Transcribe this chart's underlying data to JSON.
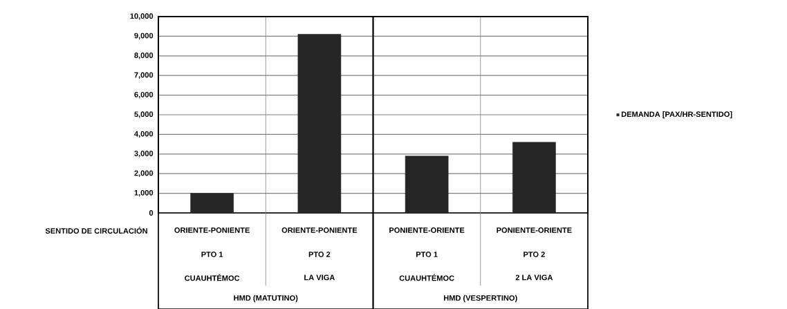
{
  "chart_data": {
    "type": "bar",
    "xlabel": "SENTIDO DE CIRCULACIÓN",
    "categories": [
      "ORIENTE-PONIENTE",
      "ORIENTE-PONIENTE",
      "PONIENTE-ORIENTE",
      "PONIENTE-ORIENTE"
    ],
    "series": [
      {
        "name": "DEMANDA [PAX/HR-SENTIDO]",
        "color": "#262626",
        "values": [
          1000,
          9100,
          2900,
          3600
        ]
      }
    ],
    "ylim": [
      0,
      10000
    ],
    "yticks": [
      {
        "value": 0,
        "label": "0"
      },
      {
        "value": 1000,
        "label": "1,000"
      },
      {
        "value": 2000,
        "label": "2,000"
      },
      {
        "value": 3000,
        "label": "3,000"
      },
      {
        "value": 4000,
        "label": "4,000"
      },
      {
        "value": 5000,
        "label": "5,000"
      },
      {
        "value": 6000,
        "label": "6,000"
      },
      {
        "value": 7000,
        "label": "7,000"
      },
      {
        "value": 8000,
        "label": "8,000"
      },
      {
        "value": 9000,
        "label": "9,000"
      },
      {
        "value": 10000,
        "label": "10,000"
      }
    ],
    "annotations": [
      "PTO 1",
      "PTO 2",
      "PTO 1",
      "PTO 2",
      "CUAUHTÉMOC",
      "LA VIGA",
      "CUAUHTÉMOC",
      "2 LA VIGA",
      "HMD (MATUTINO)",
      "HMD (VESPERTINO)"
    ],
    "grid": "y",
    "legend": "right"
  }
}
